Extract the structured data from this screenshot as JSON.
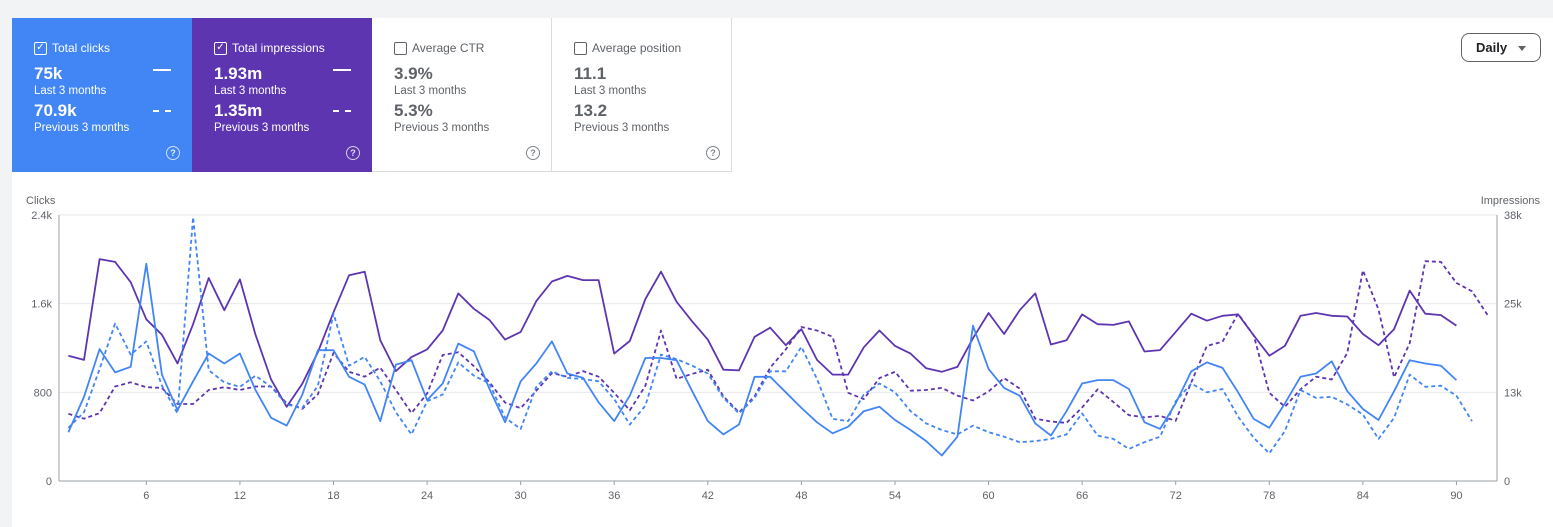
{
  "cards": [
    {
      "label": "Total clicks",
      "checked": true,
      "value": "75k",
      "period": "Last 3 months",
      "prev_value": "70.9k",
      "prev_period": "Previous 3 months",
      "color": "#4285f4"
    },
    {
      "label": "Total impressions",
      "checked": true,
      "value": "1.93m",
      "period": "Last 3 months",
      "prev_value": "1.35m",
      "prev_period": "Previous 3 months",
      "color": "#5e35b1"
    },
    {
      "label": "Average CTR",
      "checked": false,
      "value": "3.9%",
      "period": "Last 3 months",
      "prev_value": "5.3%",
      "prev_period": "Previous 3 months"
    },
    {
      "label": "Average position",
      "checked": false,
      "value": "11.1",
      "period": "Last 3 months",
      "prev_value": "13.2",
      "prev_period": "Previous 3 months"
    }
  ],
  "help_glyph": "?",
  "check_glyph": "✓",
  "granularity": {
    "label": "Daily",
    "icon": "caret-down-icon"
  },
  "chart_data": {
    "type": "line",
    "ylabel_left": "Clicks",
    "ylabel_right": "Impressions",
    "left_ticks": [
      "0",
      "800",
      "1.6k",
      "2.4k"
    ],
    "right_ticks": [
      "0",
      "13k",
      "25k",
      "38k"
    ],
    "ylim_left": [
      0,
      2400
    ],
    "ylim_right": [
      0,
      38000
    ],
    "x_ticks": [
      6,
      12,
      18,
      24,
      30,
      36,
      42,
      48,
      54,
      60,
      66,
      72,
      78,
      84,
      90
    ],
    "xlim": [
      0.4,
      92.6
    ],
    "grid": true,
    "series": [
      {
        "axis": "right",
        "color": "#5e35b1",
        "dashed": false,
        "values": [
          17900,
          17300,
          31700,
          31300,
          28400,
          23100,
          20900,
          16800,
          22400,
          29000,
          24400,
          28800,
          20900,
          14500,
          10600,
          13900,
          18400,
          24100,
          29400,
          29900,
          20100,
          15700,
          17700,
          18800,
          21500,
          26800,
          24600,
          23000,
          20200,
          21300,
          25700,
          28500,
          29300,
          28700,
          28700,
          18200,
          20000,
          26000,
          29900,
          25600,
          22800,
          20200,
          15900,
          15800,
          20600,
          21900,
          19400,
          21700,
          17300,
          15200,
          15200,
          19100,
          21500,
          19300,
          18200,
          16100,
          15600,
          16300,
          20400,
          24000,
          21000,
          24400,
          26800,
          19500,
          20100,
          23800,
          22400,
          22300,
          22800,
          18500,
          18700,
          21300,
          23900,
          22900,
          23600,
          23800,
          20800,
          17900,
          19300,
          23600,
          24000,
          23600,
          23500,
          21000,
          19400,
          21700,
          27200,
          23900,
          23700,
          22200
        ]
      },
      {
        "axis": "right",
        "color": "#5e35b1",
        "dashed": true,
        "values": [
          9600,
          8900,
          9700,
          13500,
          14100,
          13400,
          13300,
          11000,
          11000,
          13000,
          13400,
          13000,
          13500,
          13500,
          11100,
          10300,
          12400,
          18300,
          15600,
          14900,
          16200,
          13000,
          9700,
          12500,
          18000,
          18400,
          16400,
          14100,
          11200,
          10400,
          12900,
          15400,
          14900,
          15700,
          14900,
          12600,
          10100,
          13600,
          21500,
          14600,
          15300,
          15900,
          12100,
          9800,
          12100,
          16200,
          18800,
          22000,
          21500,
          20600,
          12600,
          11700,
          14700,
          15600,
          12900,
          13000,
          13300,
          12200,
          11500,
          12800,
          14700,
          13200,
          8900,
          8500,
          8300,
          10500,
          13100,
          11300,
          9400,
          9100,
          9300,
          8600,
          14100,
          19300,
          19900,
          23900,
          20800,
          12600,
          10600,
          13100,
          14900,
          14500,
          18300,
          30100,
          24500,
          14800,
          19700,
          31400,
          31300,
          28300,
          27100,
          23700
        ]
      },
      {
        "axis": "left",
        "color": "#4285f4",
        "dashed": false,
        "values": [
          440,
          760,
          1190,
          980,
          1030,
          1960,
          960,
          640,
          900,
          1150,
          1060,
          1150,
          820,
          570,
          500,
          780,
          1180,
          1180,
          940,
          870,
          540,
          1050,
          1090,
          730,
          880,
          1240,
          1170,
          830,
          530,
          900,
          1060,
          1260,
          970,
          930,
          710,
          540,
          770,
          1110,
          1110,
          1090,
          810,
          540,
          420,
          510,
          940,
          940,
          800,
          660,
          530,
          430,
          490,
          630,
          670,
          550,
          460,
          360,
          230,
          400,
          1400,
          1010,
          840,
          770,
          520,
          410,
          630,
          880,
          910,
          910,
          830,
          530,
          470,
          700,
          990,
          1070,
          1020,
          800,
          560,
          480,
          700,
          940,
          970,
          1080,
          810,
          650,
          550,
          810,
          1090,
          1060,
          1040,
          910
        ]
      },
      {
        "axis": "left",
        "color": "#4285f4",
        "dashed": true,
        "values": [
          480,
          620,
          1010,
          1420,
          1140,
          1260,
          860,
          610,
          2380,
          1000,
          890,
          850,
          950,
          850,
          690,
          660,
          860,
          1510,
          1040,
          1120,
          900,
          620,
          420,
          720,
          780,
          1070,
          950,
          880,
          570,
          470,
          850,
          990,
          930,
          920,
          900,
          740,
          510,
          680,
          1140,
          1100,
          1040,
          970,
          750,
          610,
          750,
          990,
          990,
          1210,
          920,
          560,
          540,
          780,
          880,
          800,
          630,
          520,
          460,
          420,
          500,
          440,
          400,
          350,
          360,
          380,
          420,
          610,
          410,
          380,
          290,
          350,
          400,
          720,
          880,
          800,
          830,
          580,
          390,
          250,
          450,
          820,
          750,
          760,
          690,
          600,
          380,
          570,
          960,
          850,
          860,
          770,
          540
        ]
      }
    ]
  }
}
